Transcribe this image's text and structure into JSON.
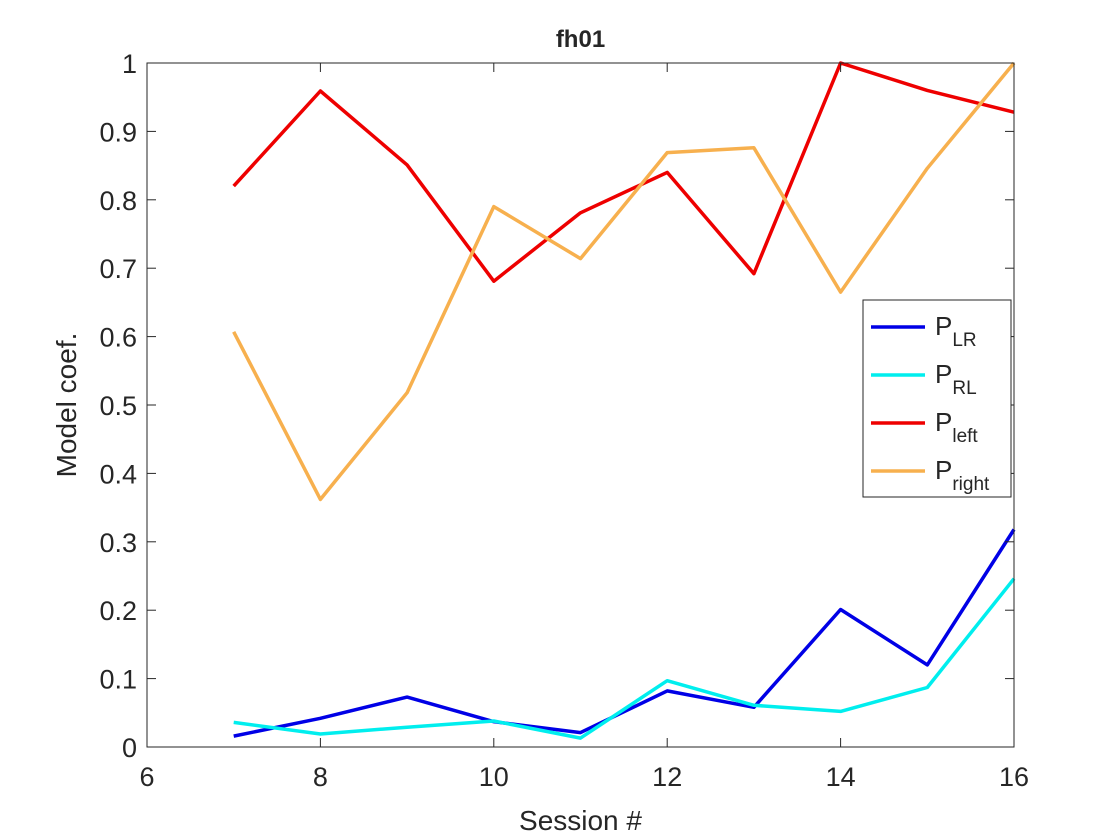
{
  "chart_data": {
    "type": "line",
    "title": "fh01",
    "xlabel": "Session #",
    "ylabel": "Model coef.",
    "xlim": [
      6,
      16
    ],
    "ylim": [
      0,
      1
    ],
    "xticks": [
      6,
      8,
      10,
      12,
      14,
      16
    ],
    "yticks": [
      0,
      0.1,
      0.2,
      0.3,
      0.4,
      0.5,
      0.6,
      0.7,
      0.8,
      0.9,
      1
    ],
    "xtick_labels": [
      "6",
      "8",
      "10",
      "12",
      "14",
      "16"
    ],
    "ytick_labels": [
      "0",
      "0.1",
      "0.2",
      "0.3",
      "0.4",
      "0.5",
      "0.6",
      "0.7",
      "0.8",
      "0.9",
      "1"
    ],
    "grid": false,
    "legend_position": "right",
    "x": [
      7,
      8,
      9,
      10,
      11,
      12,
      13,
      14,
      15,
      16
    ],
    "series": [
      {
        "name": "P",
        "subscript": "LR",
        "color": "#0000e6",
        "values": [
          0.016,
          0.042,
          0.073,
          0.037,
          0.021,
          0.082,
          0.058,
          0.201,
          0.12,
          0.318
        ]
      },
      {
        "name": "P",
        "subscript": "RL",
        "color": "#00eeee",
        "values": [
          0.036,
          0.019,
          0.029,
          0.038,
          0.013,
          0.097,
          0.061,
          0.052,
          0.087,
          0.246
        ]
      },
      {
        "name": "P",
        "subscript": "left",
        "color": "#ee0000",
        "values": [
          0.82,
          0.959,
          0.851,
          0.681,
          0.781,
          0.84,
          0.692,
          1.0,
          0.96,
          0.928
        ]
      },
      {
        "name": "P",
        "subscript": "right",
        "color": "#f7b04e",
        "values": [
          0.607,
          0.362,
          0.518,
          0.79,
          0.714,
          0.869,
          0.876,
          0.665,
          0.846,
          1.0
        ]
      }
    ]
  }
}
